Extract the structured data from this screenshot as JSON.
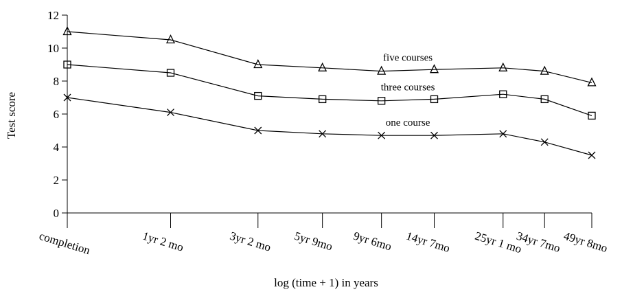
{
  "chart_data": {
    "type": "line",
    "ylabel": "Test score",
    "xlabel": "log (time + 1) in years",
    "ylim": [
      0,
      12
    ],
    "yticks": [
      0,
      2,
      4,
      6,
      8,
      10,
      12
    ],
    "x_scale": "log(time + 1)",
    "x_tick_labels": [
      "completion",
      "1yr 2 mo",
      "3yr 2 mo",
      "5yr 9mo",
      "9yr 6mo",
      "14yr 7mo",
      "25yr 1 mo",
      "34yr 7mo",
      "49yr 8mo"
    ],
    "x_years": [
      0,
      1.1667,
      3.1667,
      5.75,
      9.5,
      14.5833,
      25.0833,
      34.5833,
      49.6667
    ],
    "grid": false,
    "series": [
      {
        "name": "five courses",
        "marker": "triangle",
        "values": [
          11.0,
          10.5,
          9.0,
          8.8,
          8.6,
          8.7,
          8.8,
          8.6,
          7.9
        ]
      },
      {
        "name": "three courses",
        "marker": "square",
        "values": [
          9.0,
          8.5,
          7.1,
          6.9,
          6.8,
          6.9,
          7.2,
          6.9,
          5.9
        ]
      },
      {
        "name": "one course",
        "marker": "x",
        "values": [
          7.0,
          6.1,
          5.0,
          4.8,
          4.7,
          4.7,
          4.8,
          4.3,
          3.5
        ]
      }
    ]
  }
}
